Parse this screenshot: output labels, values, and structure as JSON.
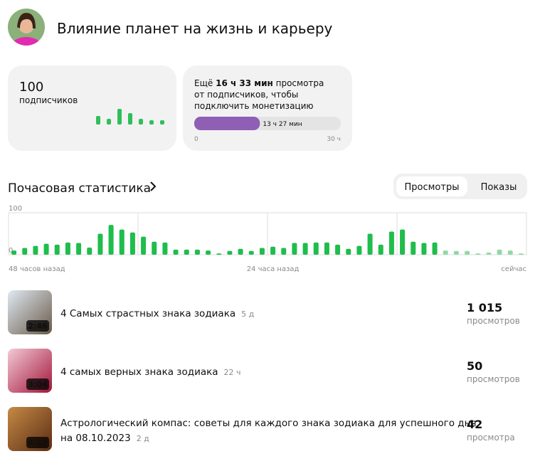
{
  "header": {
    "title": "Влияние планет на жизнь и карьеру"
  },
  "subscribers": {
    "count": "100",
    "label": "подписчиков"
  },
  "monetization": {
    "before": "Ещё",
    "highlight": "16 ч 33 мин",
    "after": "просмотра",
    "line2": "от подписчиков, чтобы",
    "line3": "подключить монетизацию",
    "progress": 13.45,
    "progress_label": "13 ч 27 мин",
    "xlim": [
      0,
      30
    ],
    "xticks": [
      0,
      {
        "value": 30,
        "label": "30 ч"
      }
    ],
    "color": "#8e5fb5"
  },
  "section": {
    "title": "Почасовая статистика",
    "tabs": [
      "Просмотры",
      "Показы"
    ],
    "active_tab": 0
  },
  "chart_data": [
    {
      "type": "bar",
      "values": [
        12,
        8,
        22,
        16,
        8,
        6,
        6
      ],
      "color": "#2fbf5a"
    },
    {
      "type": "bar",
      "ylim": [
        0,
        100
      ],
      "yticks": [
        0,
        100
      ],
      "grid": true,
      "categories": [
        "48 часов назад",
        null,
        null,
        null,
        null,
        null,
        null,
        null,
        null,
        null,
        null,
        null,
        null,
        null,
        null,
        null,
        null,
        null,
        null,
        null,
        null,
        null,
        null,
        null,
        "24 часа назад",
        null,
        null,
        null,
        null,
        null,
        null,
        null,
        null,
        null,
        null,
        null,
        null,
        null,
        null,
        null,
        null,
        null,
        null,
        null,
        null,
        null,
        null,
        "сейчас"
      ],
      "values": [
        10,
        16,
        21,
        26,
        24,
        29,
        28,
        17,
        50,
        71,
        60,
        53,
        43,
        31,
        29,
        12,
        12,
        12,
        10,
        3,
        9,
        14,
        9,
        16,
        19,
        16,
        28,
        28,
        29,
        29,
        24,
        14,
        21,
        50,
        24,
        55,
        60,
        31,
        28,
        29,
        10,
        9,
        9,
        3,
        5,
        12,
        10,
        3
      ],
      "colors": [
        "#1fbd4c",
        "#1fbd4c",
        "#1fbd4c",
        "#1fbd4c",
        "#1fbd4c",
        "#1fbd4c",
        "#1fbd4c",
        "#1fbd4c",
        "#1fbd4c",
        "#1fbd4c",
        "#1fbd4c",
        "#1fbd4c",
        "#1fbd4c",
        "#1fbd4c",
        "#1fbd4c",
        "#1fbd4c",
        "#1fbd4c",
        "#1fbd4c",
        "#1fbd4c",
        "#1fbd4c",
        "#1fbd4c",
        "#1fbd4c",
        "#1fbd4c",
        "#1fbd4c",
        "#1fbd4c",
        "#1fbd4c",
        "#1fbd4c",
        "#1fbd4c",
        "#1fbd4c",
        "#1fbd4c",
        "#1fbd4c",
        "#1fbd4c",
        "#1fbd4c",
        "#1fbd4c",
        "#1fbd4c",
        "#1fbd4c",
        "#1fbd4c",
        "#1fbd4c",
        "#1fbd4c",
        "#1fbd4c",
        "#8fdaa5",
        "#8fdaa5",
        "#8fdaa5",
        "#8fdaa5",
        "#8fdaa5",
        "#8fdaa5",
        "#8fdaa5",
        "#8fdaa5"
      ]
    }
  ],
  "videos": [
    {
      "duration": "2:46",
      "title_lines": [
        "4 Самых страстных знака зодиака"
      ],
      "age": "5 д",
      "views": "1 015",
      "unit": "просмотров"
    },
    {
      "duration": "3:04",
      "title_lines": [
        "4 самых верных знака зодиака"
      ],
      "age": "22 ч",
      "views": "50",
      "unit": "просмотров"
    },
    {
      "duration": "4:43",
      "title_lines": [
        "Астрологический компас: советы для каждого знака зодиака для успешного дня",
        "на 08.10.2023"
      ],
      "age": "2 д",
      "views": "42",
      "unit": "просмотра"
    }
  ]
}
